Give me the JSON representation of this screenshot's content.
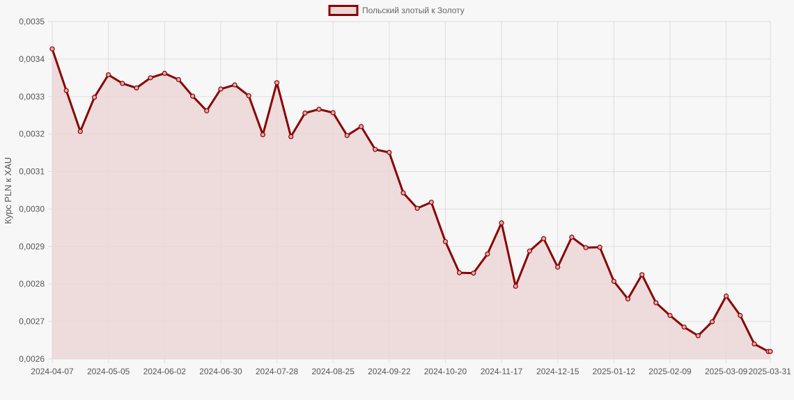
{
  "chart_data": {
    "type": "area",
    "title": "",
    "xlabel": "",
    "ylabel": "Курс PLN к XAU",
    "legend": {
      "position": "top",
      "label": "Польский злотый к Золоту"
    },
    "colors": {
      "line": "#8b0000",
      "fill": "#ecd6d6",
      "grid": "#dddddd",
      "background": "#f7f7f7",
      "text": "#555555"
    },
    "grid": true,
    "ylim": [
      0.0026,
      0.0035
    ],
    "y_ticks": [
      "0,0026",
      "0,0027",
      "0,0028",
      "0,0029",
      "0,0030",
      "0,0031",
      "0,0032",
      "0,0033",
      "0,0034",
      "0,0035"
    ],
    "x_ticks": [
      "2024-04-07",
      "2024-05-05",
      "2024-06-02",
      "2024-06-30",
      "2024-07-28",
      "2024-08-25",
      "2024-09-22",
      "2024-10-20",
      "2024-11-17",
      "2024-12-15",
      "2025-01-12",
      "2025-02-09",
      "2025-03-09",
      "2025-03-31"
    ],
    "series": [
      {
        "name": "Польский злотый к Золоту",
        "x": [
          "2024-04-07",
          "2024-04-14",
          "2024-04-21",
          "2024-04-28",
          "2024-05-05",
          "2024-05-12",
          "2024-05-19",
          "2024-05-26",
          "2024-06-02",
          "2024-06-09",
          "2024-06-16",
          "2024-06-23",
          "2024-06-30",
          "2024-07-07",
          "2024-07-14",
          "2024-07-21",
          "2024-07-28",
          "2024-08-04",
          "2024-08-11",
          "2024-08-18",
          "2024-08-25",
          "2024-09-01",
          "2024-09-08",
          "2024-09-15",
          "2024-09-22",
          "2024-09-29",
          "2024-10-06",
          "2024-10-13",
          "2024-10-20",
          "2024-10-27",
          "2024-11-03",
          "2024-11-10",
          "2024-11-17",
          "2024-11-24",
          "2024-12-01",
          "2024-12-08",
          "2024-12-15",
          "2024-12-22",
          "2024-12-29",
          "2025-01-05",
          "2025-01-12",
          "2025-01-19",
          "2025-01-26",
          "2025-02-02",
          "2025-02-09",
          "2025-02-16",
          "2025-02-23",
          "2025-03-02",
          "2025-03-09",
          "2025-03-16",
          "2025-03-23",
          "2025-03-30",
          "2025-03-31"
        ],
        "values": [
          0.003427,
          0.003316,
          0.003207,
          0.003298,
          0.003358,
          0.003335,
          0.003323,
          0.00335,
          0.003362,
          0.003345,
          0.003301,
          0.003262,
          0.00332,
          0.003331,
          0.003302,
          0.003198,
          0.003337,
          0.003193,
          0.003256,
          0.003266,
          0.003257,
          0.003196,
          0.00322,
          0.003159,
          0.003151,
          0.003043,
          0.003002,
          0.003018,
          0.002913,
          0.00283,
          0.002829,
          0.00288,
          0.002963,
          0.002794,
          0.002888,
          0.002921,
          0.002845,
          0.002925,
          0.002897,
          0.002898,
          0.002807,
          0.00276,
          0.002825,
          0.00275,
          0.002716,
          0.002685,
          0.002662,
          0.002699,
          0.002768,
          0.002716,
          0.00264,
          0.00262,
          0.00262
        ]
      }
    ]
  }
}
